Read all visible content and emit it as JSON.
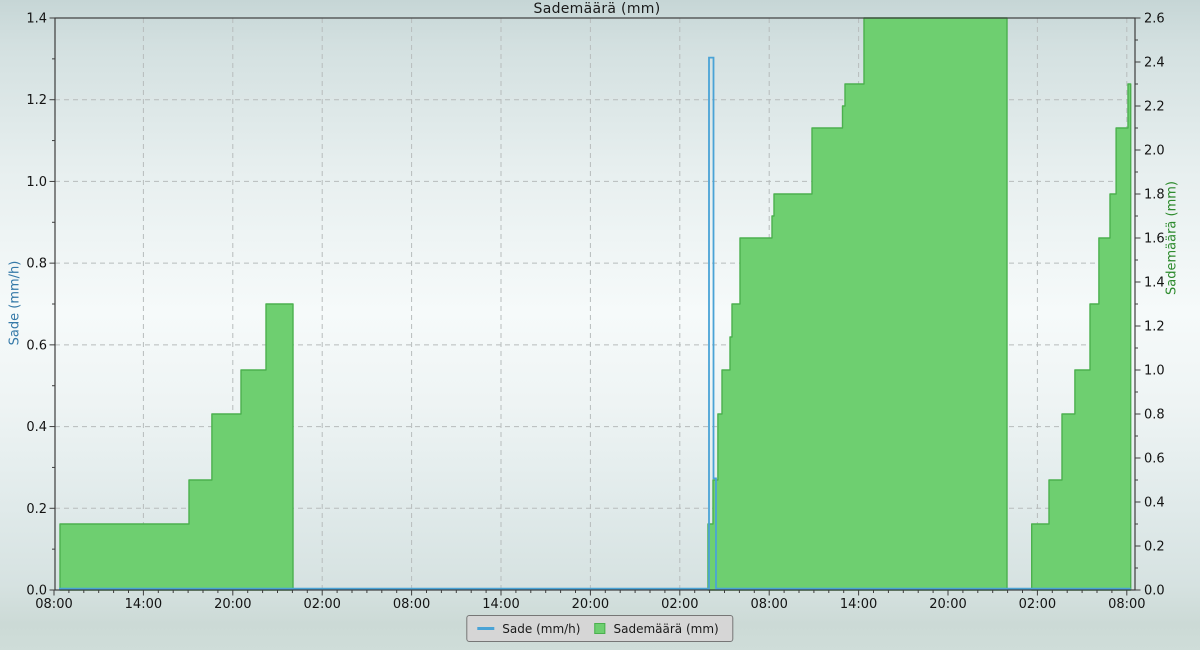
{
  "chart_data": {
    "type": "area",
    "title": "Sademäärä (mm)",
    "grid": true,
    "legend_position": "bottom-center",
    "x_axis": {
      "unit": "time-of-day over 3 days",
      "hours_span": 72.55,
      "tick_hours": [
        0,
        6,
        12,
        18,
        24,
        30,
        36,
        42,
        48,
        54,
        60,
        66,
        72
      ],
      "tick_labels": [
        "08:00",
        "14:00",
        "20:00",
        "02:00",
        "08:00",
        "14:00",
        "20:00",
        "02:00",
        "08:00",
        "14:00",
        "20:00",
        "02:00",
        "08:00"
      ],
      "minor_tick_step_hours": 1
    },
    "y_left": {
      "label": "Sade (mm/h)",
      "min": 0.0,
      "max": 1.4,
      "tick_labels": [
        "0.0",
        "0.2",
        "0.4",
        "0.6",
        "0.8",
        "1.0",
        "1.2",
        "1.4"
      ],
      "minor_tick_step": 0.1
    },
    "y_right": {
      "label": "Sademäärä (mm)",
      "min": 0.0,
      "max": 2.6,
      "tick_labels": [
        "0.0",
        "0.2",
        "0.4",
        "0.6",
        "0.8",
        "1.0",
        "1.2",
        "1.4",
        "1.6",
        "1.8",
        "2.0",
        "2.2",
        "2.4",
        "2.6"
      ],
      "minor_tick_step": 0.1
    },
    "legend": [
      {
        "label": "Sade (mm/h)",
        "marker": "line"
      },
      {
        "label": "Sademäärä (mm)",
        "marker": "square"
      }
    ],
    "series": {
      "rain_rate": {
        "name": "Sade (mm/h)",
        "axis": "left",
        "unit": "mm/h",
        "points_t_v": [
          [
            0.34,
            0
          ],
          [
            43.96,
            0
          ],
          [
            43.96,
            1.3
          ],
          [
            44.26,
            1.3
          ],
          [
            44.26,
            0.27
          ],
          [
            44.43,
            0.27
          ],
          [
            44.43,
            0
          ],
          [
            72.26,
            0
          ]
        ],
        "peak_mm_per_h": 1.3
      },
      "rain_accumulation": {
        "name": "Sademäärä (mm)",
        "axis": "right",
        "unit": "mm",
        "note": "cumulative daily rainfall, resets to 0 at midnight",
        "blocks": [
          [
            [
              0.4,
              9.06,
              0.3
            ],
            [
              9.06,
              10.6,
              0.5
            ],
            [
              10.6,
              12.55,
              0.8
            ],
            [
              12.55,
              14.23,
              1.0
            ],
            [
              14.23,
              16.04,
              1.3
            ]
          ],
          [
            [
              43.89,
              44.23,
              0.3
            ],
            [
              44.23,
              44.56,
              0.5
            ],
            [
              44.56,
              44.83,
              0.8
            ],
            [
              44.83,
              45.37,
              1.0
            ],
            [
              45.37,
              45.5,
              1.15
            ],
            [
              45.5,
              46.04,
              1.3
            ],
            [
              46.04,
              48.19,
              1.6
            ],
            [
              48.19,
              48.32,
              1.7
            ],
            [
              48.32,
              50.87,
              1.8
            ],
            [
              50.87,
              52.92,
              2.1
            ],
            [
              52.92,
              53.09,
              2.2
            ],
            [
              53.09,
              54.36,
              2.3
            ],
            [
              54.36,
              63.96,
              2.6
            ]
          ],
          [
            [
              65.62,
              66.78,
              0.3
            ],
            [
              66.78,
              67.65,
              0.5
            ],
            [
              67.65,
              68.52,
              0.8
            ],
            [
              68.52,
              69.53,
              1.0
            ],
            [
              69.53,
              70.13,
              1.3
            ],
            [
              70.13,
              70.87,
              1.6
            ],
            [
              70.87,
              71.28,
              1.8
            ],
            [
              71.28,
              72.08,
              2.1
            ],
            [
              72.08,
              72.26,
              2.3
            ]
          ]
        ],
        "daily_totals_mm": [
          1.3,
          2.6,
          2.3
        ]
      }
    },
    "colors": {
      "line_blue": "#4aa3d6",
      "area_green_fill": "#6ecf70",
      "area_green_edge": "#4bb04e",
      "left_label_text": "#3579a8",
      "right_label_text": "#2e8b2e",
      "tick_text": "#141414",
      "axis_line": "#3d3d3d",
      "gridline": "#b7bcbc",
      "legend_bg": "#d6d6d6",
      "legend_border": "#767676"
    }
  }
}
